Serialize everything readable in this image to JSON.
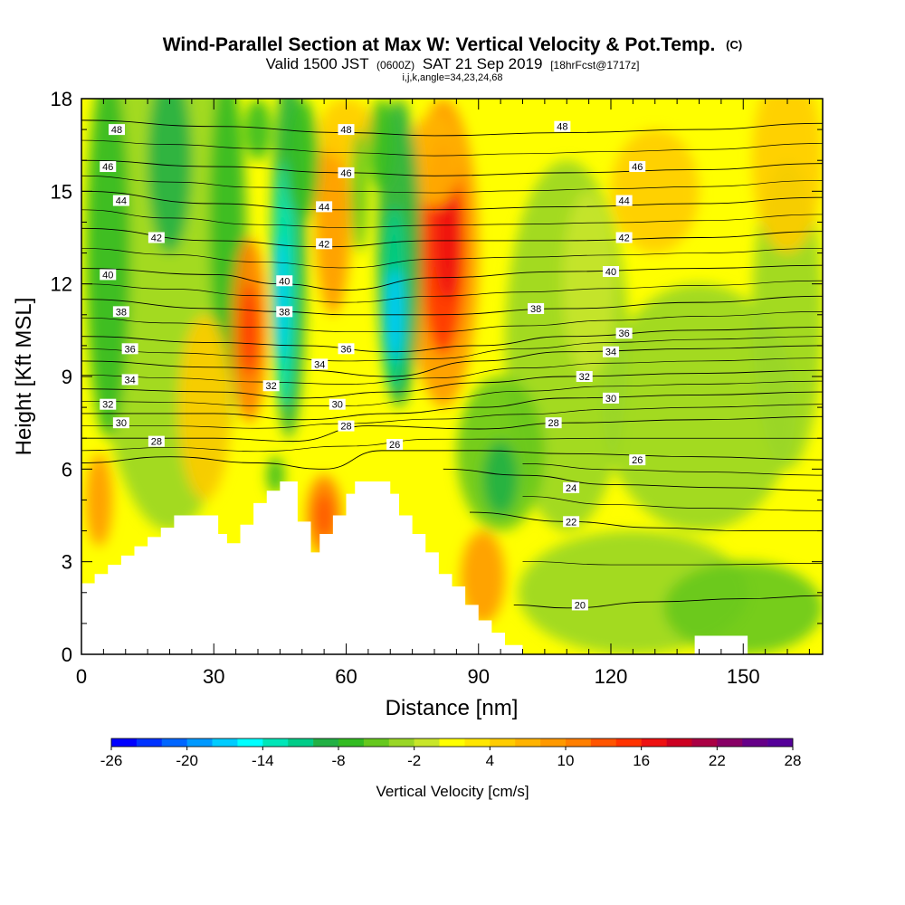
{
  "chart_data": {
    "type": "heatmap",
    "title": "Wind-Parallel Section at Max W: Vertical Velocity & Pot.Temp.",
    "title_mark": "(C)",
    "subtitle_main": "Valid 1500 JST",
    "subtitle_utc": "(0600Z)",
    "subtitle_date": "SAT 21 Sep 2019",
    "subtitle_fcst": "[18hrFcst@1717z]",
    "subtitle2": "i,j,k,angle=34,23,24,68",
    "xlabel": "Distance [nm]",
    "ylabel": "Height [Kft MSL]",
    "xlim": [
      0,
      168
    ],
    "ylim": [
      0,
      18
    ],
    "x_ticks": [
      0,
      30,
      60,
      90,
      120,
      150
    ],
    "y_ticks": [
      0,
      3,
      6,
      9,
      12,
      15,
      18
    ],
    "colorbar": {
      "label": "Vertical Velocity [cm/s]",
      "min": -26,
      "max": 28,
      "step": 2,
      "tick_labels": [
        "-26",
        "-20",
        "-14",
        "-8",
        "-2",
        "4",
        "10",
        "16",
        "22",
        "28"
      ],
      "colors": [
        "#0000ff",
        "#0033ff",
        "#0066ff",
        "#0099ff",
        "#00ccff",
        "#00ffff",
        "#00e6b8",
        "#00cc88",
        "#22b044",
        "#33bb22",
        "#66c81e",
        "#99d626",
        "#c8e62a",
        "#ffff00",
        "#ffe600",
        "#ffcc00",
        "#ffb300",
        "#ff9900",
        "#ff7f00",
        "#ff5500",
        "#ff3300",
        "#ee1111",
        "#cc0022",
        "#aa0044",
        "#880066",
        "#660088",
        "#550099"
      ]
    },
    "theta_contours": [
      {
        "label": "48",
        "points": [
          [
            0,
            17.3
          ],
          [
            30,
            17.1
          ],
          [
            60,
            16.9
          ],
          [
            80,
            16.8
          ],
          [
            110,
            16.9
          ],
          [
            140,
            17.0
          ],
          [
            168,
            17.2
          ]
        ],
        "label_at": [
          [
            8,
            17.0
          ],
          [
            60,
            17.0
          ],
          [
            109,
            17.1
          ]
        ]
      },
      {
        "label": "46",
        "points": [
          [
            0,
            16.0
          ],
          [
            30,
            15.8
          ],
          [
            60,
            15.6
          ],
          [
            80,
            15.5
          ],
          [
            110,
            15.6
          ],
          [
            140,
            15.7
          ],
          [
            168,
            15.9
          ]
        ],
        "label_at": [
          [
            6,
            15.8
          ],
          [
            60,
            15.6
          ],
          [
            126,
            15.8
          ]
        ]
      },
      {
        "label": "44",
        "points": [
          [
            0,
            15.0
          ],
          [
            30,
            14.6
          ],
          [
            55,
            14.4
          ],
          [
            80,
            14.4
          ],
          [
            110,
            14.5
          ],
          [
            140,
            14.6
          ],
          [
            168,
            14.8
          ]
        ],
        "label_at": [
          [
            9,
            14.7
          ],
          [
            55,
            14.5
          ],
          [
            123,
            14.7
          ]
        ]
      },
      {
        "label": "42",
        "points": [
          [
            0,
            13.8
          ],
          [
            30,
            13.4
          ],
          [
            55,
            13.2
          ],
          [
            80,
            13.4
          ],
          [
            110,
            13.4
          ],
          [
            140,
            13.5
          ],
          [
            168,
            13.7
          ]
        ],
        "label_at": [
          [
            17,
            13.5
          ],
          [
            55,
            13.3
          ],
          [
            123,
            13.5
          ]
        ]
      },
      {
        "label": "40",
        "points": [
          [
            0,
            12.5
          ],
          [
            30,
            12.3
          ],
          [
            45,
            12.0
          ],
          [
            60,
            11.8
          ],
          [
            80,
            12.2
          ],
          [
            110,
            12.4
          ],
          [
            140,
            12.5
          ],
          [
            168,
            12.6
          ]
        ],
        "label_at": [
          [
            6,
            12.3
          ],
          [
            46,
            12.1
          ],
          [
            120,
            12.4
          ]
        ]
      },
      {
        "label": "38",
        "points": [
          [
            0,
            11.5
          ],
          [
            30,
            11.2
          ],
          [
            45,
            11.1
          ],
          [
            60,
            11.0
          ],
          [
            80,
            11.0
          ],
          [
            110,
            11.2
          ],
          [
            140,
            11.4
          ],
          [
            168,
            11.6
          ]
        ],
        "label_at": [
          [
            9,
            11.1
          ],
          [
            46,
            11.1
          ],
          [
            103,
            11.2
          ]
        ]
      },
      {
        "label": "36",
        "points": [
          [
            0,
            10.3
          ],
          [
            30,
            10.1
          ],
          [
            50,
            10.0
          ],
          [
            70,
            9.8
          ],
          [
            90,
            10.0
          ],
          [
            110,
            10.3
          ],
          [
            140,
            10.5
          ],
          [
            168,
            10.6
          ]
        ],
        "label_at": [
          [
            11,
            9.9
          ],
          [
            60,
            9.9
          ],
          [
            123,
            10.4
          ]
        ]
      },
      {
        "label": "34",
        "points": [
          [
            0,
            9.5
          ],
          [
            30,
            9.3
          ],
          [
            50,
            9.2
          ],
          [
            70,
            9.0
          ],
          [
            90,
            9.5
          ],
          [
            110,
            9.8
          ],
          [
            140,
            9.9
          ],
          [
            168,
            10.0
          ]
        ],
        "label_at": [
          [
            11,
            8.9
          ],
          [
            54,
            9.4
          ],
          [
            120,
            9.8
          ]
        ]
      },
      {
        "label": "32",
        "points": [
          [
            0,
            8.6
          ],
          [
            30,
            8.5
          ],
          [
            50,
            8.3
          ],
          [
            70,
            8.5
          ],
          [
            90,
            8.8
          ],
          [
            110,
            9.0
          ],
          [
            140,
            9.1
          ],
          [
            168,
            9.2
          ]
        ],
        "label_at": [
          [
            6,
            8.1
          ],
          [
            43,
            8.7
          ],
          [
            114,
            9.0
          ]
        ]
      },
      {
        "label": "30",
        "points": [
          [
            0,
            7.8
          ],
          [
            30,
            7.8
          ],
          [
            50,
            7.6
          ],
          [
            70,
            7.8
          ],
          [
            90,
            8.0
          ],
          [
            110,
            8.3
          ],
          [
            140,
            8.4
          ],
          [
            168,
            8.5
          ]
        ],
        "label_at": [
          [
            9,
            7.5
          ],
          [
            58,
            8.1
          ],
          [
            120,
            8.3
          ]
        ]
      },
      {
        "label": "28",
        "points": [
          [
            0,
            7.0
          ],
          [
            30,
            7.0
          ],
          [
            48,
            6.9
          ],
          [
            65,
            7.4
          ],
          [
            90,
            7.3
          ],
          [
            110,
            7.5
          ],
          [
            140,
            7.6
          ],
          [
            168,
            7.7
          ]
        ],
        "label_at": [
          [
            17,
            6.9
          ],
          [
            60,
            7.4
          ],
          [
            107,
            7.5
          ]
        ]
      },
      {
        "label": "26",
        "points": [
          [
            0,
            6.2
          ],
          [
            20,
            6.4
          ],
          [
            40,
            6.2
          ],
          [
            55,
            6.0
          ],
          [
            68,
            6.6
          ],
          [
            90,
            6.6
          ],
          [
            110,
            6.5
          ],
          [
            140,
            6.4
          ],
          [
            168,
            6.3
          ]
        ],
        "label_at": [
          [
            71,
            6.8
          ],
          [
            126,
            6.3
          ]
        ]
      },
      {
        "label": "24",
        "points": [
          [
            82,
            6.0
          ],
          [
            100,
            5.8
          ],
          [
            120,
            5.5
          ],
          [
            145,
            5.4
          ],
          [
            168,
            5.3
          ]
        ],
        "label_at": [
          [
            111,
            5.4
          ]
        ]
      },
      {
        "label": "22",
        "points": [
          [
            88,
            4.6
          ],
          [
            110,
            4.3
          ],
          [
            130,
            4.1
          ],
          [
            150,
            4.0
          ],
          [
            168,
            4.0
          ]
        ],
        "label_at": [
          [
            111,
            4.3
          ]
        ]
      },
      {
        "label": "20",
        "points": [
          [
            98,
            1.6
          ],
          [
            110,
            1.5
          ],
          [
            130,
            1.7
          ],
          [
            150,
            1.8
          ],
          [
            168,
            1.9
          ]
        ],
        "label_at": [
          [
            113,
            1.6
          ]
        ]
      }
    ]
  }
}
